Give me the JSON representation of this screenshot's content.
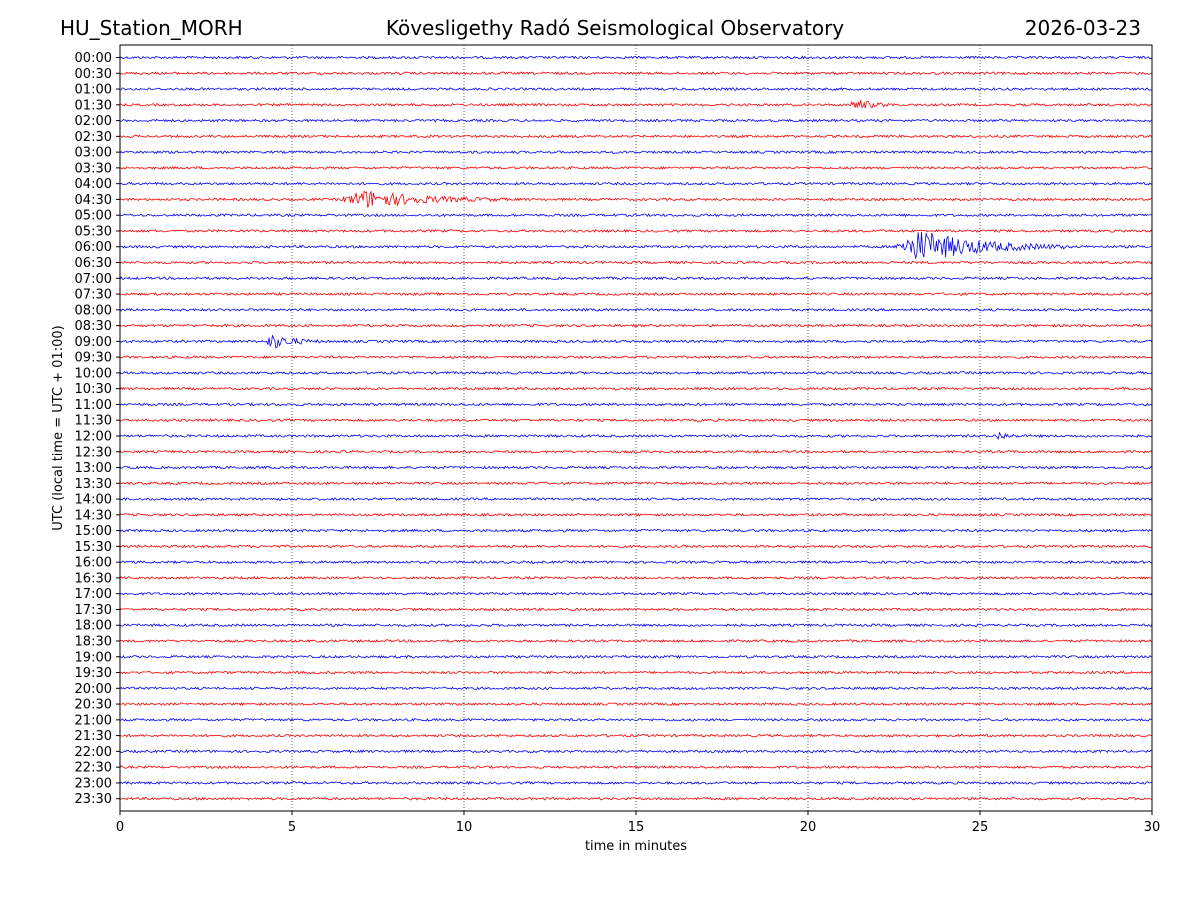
{
  "header": {
    "station": "HU_Station_MORH",
    "title": "Kövesligethy Radó Seismological Observatory",
    "date": "2026-03-23"
  },
  "chart_data": {
    "type": "line",
    "chart_kind": "helicorder",
    "xlabel": "time in minutes",
    "ylabel": "UTC (local time = UTC + 01:00)",
    "xlim": [
      0,
      30
    ],
    "x_ticks": [
      0,
      5,
      10,
      15,
      20,
      25,
      30
    ],
    "x_tick_labels": [
      "0",
      "5",
      "10",
      "15",
      "20",
      "25",
      "30"
    ],
    "grid": "vertical dotted lines at each x tick",
    "series_colors": [
      "#0000ff",
      "#ff0000"
    ],
    "row_labels": [
      "00:00",
      "00:30",
      "01:00",
      "01:30",
      "02:00",
      "02:30",
      "03:00",
      "03:30",
      "04:00",
      "04:30",
      "05:00",
      "05:30",
      "06:00",
      "06:30",
      "07:00",
      "07:30",
      "08:00",
      "08:30",
      "09:00",
      "09:30",
      "10:00",
      "10:30",
      "11:00",
      "11:30",
      "12:00",
      "12:30",
      "13:00",
      "13:30",
      "14:00",
      "14:30",
      "15:00",
      "15:30",
      "16:00",
      "16:30",
      "17:00",
      "17:30",
      "18:00",
      "18:30",
      "19:00",
      "19:30",
      "20:00",
      "20:30",
      "21:00",
      "21:30",
      "22:00",
      "22:30",
      "23:00",
      "23:30"
    ],
    "events": [
      {
        "row": "01:30",
        "start_min": 21.2,
        "end_min": 22.5,
        "peak_amplitude": 0.35
      },
      {
        "row": "04:30",
        "start_min": 6.4,
        "end_min": 11.2,
        "peak_amplitude": 0.55
      },
      {
        "row": "06:00",
        "start_min": 22.5,
        "end_min": 27.5,
        "peak_amplitude": 1.0
      },
      {
        "row": "09:00",
        "start_min": 4.2,
        "end_min": 5.8,
        "peak_amplitude": 0.45
      },
      {
        "row": "12:00",
        "start_min": 25.4,
        "end_min": 26.2,
        "peak_amplitude": 0.25
      }
    ]
  }
}
